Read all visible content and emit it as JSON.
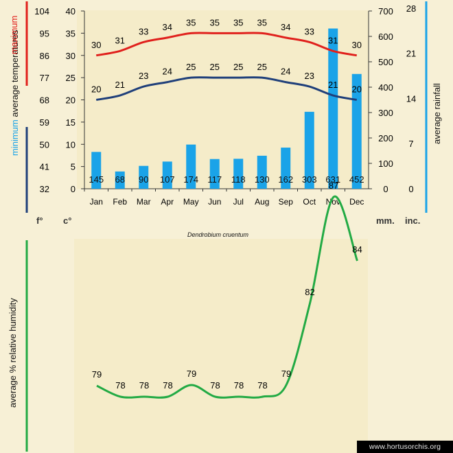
{
  "chart_data": [
    {
      "type": "bar+line",
      "title": "",
      "categories": [
        "Jan",
        "Feb",
        "Mar",
        "Apr",
        "May",
        "Jun",
        "Jul",
        "Aug",
        "Sep",
        "Oct",
        "Nov",
        "Dec"
      ],
      "series": [
        {
          "name": "maximum",
          "kind": "line",
          "axis": "celsius",
          "values": [
            30,
            31,
            33,
            34,
            35,
            35,
            35,
            35,
            34,
            33,
            31,
            30
          ]
        },
        {
          "name": "minimum",
          "kind": "line",
          "axis": "celsius",
          "values": [
            20,
            21,
            23,
            24,
            25,
            25,
            25,
            25,
            24,
            23,
            21,
            20
          ]
        },
        {
          "name": "average rainfall",
          "kind": "bar",
          "axis": "mm",
          "values": [
            145,
            68,
            90,
            107,
            174,
            117,
            118,
            130,
            162,
            303,
            631,
            452
          ]
        }
      ],
      "y_left_celsius": {
        "unit": "c°",
        "ticks": [
          0,
          5,
          10,
          15,
          20,
          25,
          30,
          35,
          40
        ],
        "ylim": [
          0,
          40
        ]
      },
      "y_left_fahrenheit": {
        "unit": "f°",
        "ticks": [
          32,
          41,
          50,
          59,
          68,
          77,
          86,
          95,
          104
        ]
      },
      "y_right_mm": {
        "unit": "mm.",
        "ticks": [
          0,
          100,
          200,
          300,
          400,
          500,
          600,
          700
        ],
        "ylim": [
          0,
          700
        ]
      },
      "y_right_inches": {
        "unit": "inc.",
        "ticks": [
          0,
          7,
          14,
          21,
          28
        ]
      },
      "ylabel_left": {
        "maximum": "maximum",
        "average": "average",
        "temperatures": "temperatures",
        "minimum": "minimum"
      },
      "ylabel_right": "average rainfall",
      "caption": "Dendrobium cruentum",
      "colors": {
        "maximum": "#e0201c",
        "minimum": "#1f3f7a",
        "rainfall": "#1aa3e8"
      }
    },
    {
      "type": "line",
      "categories": [
        "Jan",
        "Feb",
        "Mar",
        "Apr",
        "May",
        "Jun",
        "Jul",
        "Aug",
        "Sep",
        "Oct",
        "Nov",
        "Dec"
      ],
      "series": [
        {
          "name": "average % relative humidity",
          "values": [
            79,
            78,
            78,
            78,
            79,
            78,
            78,
            78,
            79,
            82,
            87,
            84
          ]
        }
      ],
      "ylabel": "average %  relative humidity",
      "colors": {
        "humidity": "#22aa44"
      }
    }
  ],
  "watermark": "www.hortusorchis.org"
}
